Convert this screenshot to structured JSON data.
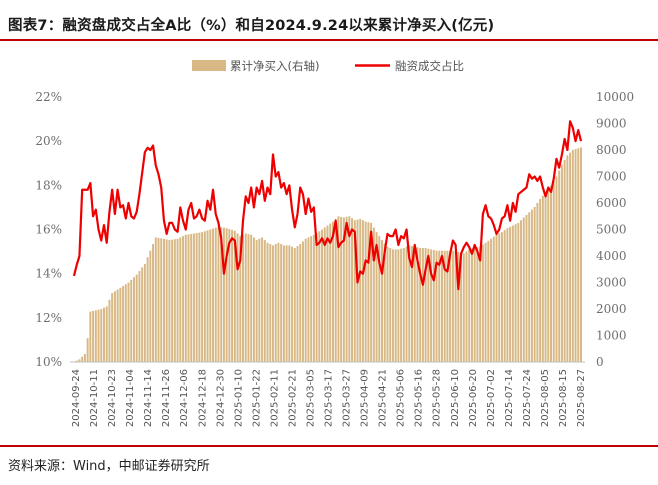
{
  "header": {
    "title": "图表7：融资盘成交占全A比（%）和自2024.9.24以来累计净买入(亿元)"
  },
  "footer": {
    "source": "资料来源：Wind，中邮证券研究所"
  },
  "colors": {
    "rule": "#c00000",
    "bar": "#d8b884",
    "line": "#ee0000"
  },
  "chart_data": {
    "type": "bar+line",
    "x_tick_labels": [
      "2024-09-24",
      "2024-10-11",
      "2024-10-23",
      "2024-11-04",
      "2024-11-14",
      "2024-11-26",
      "2024-12-06",
      "2024-12-18",
      "2024-12-30",
      "2025-01-10",
      "2025-01-22",
      "2025-02-11",
      "2025-02-21",
      "2025-03-05",
      "2025-03-17",
      "2025-03-27",
      "2025-04-09",
      "2025-04-21",
      "2025-05-06",
      "2025-05-16",
      "2025-05-28",
      "2025-06-10",
      "2025-06-20",
      "2025-07-02",
      "2025-07-14",
      "2025-07-24",
      "2025-08-05",
      "2025-08-15",
      "2025-08-27"
    ],
    "left_axis": {
      "ticks": [
        "10%",
        "12%",
        "14%",
        "16%",
        "18%",
        "20%",
        "22%"
      ],
      "ylim": [
        10,
        22
      ]
    },
    "right_axis": {
      "ticks": [
        "0",
        "1000",
        "2000",
        "3000",
        "4000",
        "5000",
        "6000",
        "7000",
        "8000",
        "9000",
        "10000"
      ],
      "ylim": [
        0,
        10000
      ]
    },
    "legend": {
      "placement": "top",
      "bar_label": "累计净买入(右轴)",
      "line_label": "融资成交占比"
    },
    "bar_series": {
      "name": "累计净买入(右轴)",
      "axis": "right",
      "knots": [
        [
          0,
          0
        ],
        [
          2,
          100
        ],
        [
          4,
          300
        ],
        [
          5,
          900
        ],
        [
          6,
          1900
        ],
        [
          8,
          1950
        ],
        [
          10,
          2000
        ],
        [
          12,
          2100
        ],
        [
          14,
          2600
        ],
        [
          17,
          2800
        ],
        [
          20,
          3000
        ],
        [
          23,
          3300
        ],
        [
          26,
          3700
        ],
        [
          28,
          4200
        ],
        [
          30,
          4700
        ],
        [
          33,
          4650
        ],
        [
          35,
          4600
        ],
        [
          38,
          4650
        ],
        [
          41,
          4800
        ],
        [
          44,
          4850
        ],
        [
          47,
          4900
        ],
        [
          50,
          5000
        ],
        [
          53,
          5100
        ],
        [
          56,
          5050
        ],
        [
          59,
          4950
        ],
        [
          61,
          4750
        ],
        [
          63,
          4850
        ],
        [
          65,
          4800
        ],
        [
          67,
          4600
        ],
        [
          69,
          4700
        ],
        [
          71,
          4500
        ],
        [
          73,
          4400
        ],
        [
          75,
          4500
        ],
        [
          77,
          4400
        ],
        [
          79,
          4400
        ],
        [
          81,
          4300
        ],
        [
          83,
          4450
        ],
        [
          85,
          4650
        ],
        [
          88,
          4800
        ],
        [
          91,
          5000
        ],
        [
          93,
          5150
        ],
        [
          95,
          5300
        ],
        [
          97,
          5500
        ],
        [
          99,
          5450
        ],
        [
          101,
          5500
        ],
        [
          103,
          5350
        ],
        [
          105,
          5400
        ],
        [
          107,
          5300
        ],
        [
          109,
          5250
        ],
        [
          111,
          4900
        ],
        [
          113,
          4600
        ],
        [
          115,
          4350
        ],
        [
          117,
          4250
        ],
        [
          119,
          4250
        ],
        [
          121,
          4300
        ],
        [
          123,
          4400
        ],
        [
          125,
          4350
        ],
        [
          127,
          4300
        ],
        [
          129,
          4300
        ],
        [
          131,
          4250
        ],
        [
          133,
          4200
        ],
        [
          135,
          4200
        ],
        [
          137,
          4200
        ],
        [
          139,
          4200
        ],
        [
          141,
          4150
        ],
        [
          143,
          4100
        ],
        [
          145,
          4250
        ],
        [
          147,
          4300
        ],
        [
          149,
          4350
        ],
        [
          151,
          4500
        ],
        [
          153,
          4650
        ],
        [
          155,
          4800
        ],
        [
          157,
          4900
        ],
        [
          159,
          5050
        ],
        [
          161,
          5150
        ],
        [
          163,
          5250
        ],
        [
          165,
          5450
        ],
        [
          167,
          5650
        ],
        [
          169,
          5850
        ],
        [
          171,
          6150
        ],
        [
          173,
          6400
        ],
        [
          175,
          6650
        ],
        [
          177,
          7000
        ],
        [
          179,
          7450
        ],
        [
          181,
          7800
        ],
        [
          183,
          8000
        ],
        [
          186,
          8100
        ],
        [
          187,
          8150
        ]
      ]
    },
    "line_series": {
      "name": "融资成交占比",
      "axis": "left",
      "knots": [
        [
          0,
          13.9
        ],
        [
          1,
          14.4
        ],
        [
          2,
          14.8
        ],
        [
          3,
          17.8
        ],
        [
          5,
          17.8
        ],
        [
          6,
          18.1
        ],
        [
          7,
          16.6
        ],
        [
          8,
          16.9
        ],
        [
          9,
          16.0
        ],
        [
          10,
          15.5
        ],
        [
          11,
          16.2
        ],
        [
          12,
          15.4
        ],
        [
          13,
          16.8
        ],
        [
          14,
          17.8
        ],
        [
          15,
          16.7
        ],
        [
          16,
          17.8
        ],
        [
          17,
          17.0
        ],
        [
          18,
          17.1
        ],
        [
          19,
          16.5
        ],
        [
          20,
          17.2
        ],
        [
          21,
          16.6
        ],
        [
          22,
          16.5
        ],
        [
          23,
          16.8
        ],
        [
          24,
          17.6
        ],
        [
          26,
          19.5
        ],
        [
          27,
          19.7
        ],
        [
          28,
          19.6
        ],
        [
          29,
          19.8
        ],
        [
          30,
          18.9
        ],
        [
          31,
          18.5
        ],
        [
          32,
          17.9
        ],
        [
          33,
          16.4
        ],
        [
          34,
          15.8
        ],
        [
          35,
          16.3
        ],
        [
          36,
          16.3
        ],
        [
          37,
          16.0
        ],
        [
          38,
          15.9
        ],
        [
          39,
          17.0
        ],
        [
          40,
          16.4
        ],
        [
          41,
          16.0
        ],
        [
          42,
          16.9
        ],
        [
          43,
          17.2
        ],
        [
          44,
          16.5
        ],
        [
          45,
          16.6
        ],
        [
          46,
          16.9
        ],
        [
          47,
          16.5
        ],
        [
          48,
          16.4
        ],
        [
          49,
          17.3
        ],
        [
          50,
          16.9
        ],
        [
          51,
          17.8
        ],
        [
          52,
          16.7
        ],
        [
          53,
          16.3
        ],
        [
          54,
          15.6
        ],
        [
          55,
          14.0
        ],
        [
          56,
          14.8
        ],
        [
          57,
          15.4
        ],
        [
          58,
          15.6
        ],
        [
          59,
          15.5
        ],
        [
          60,
          14.2
        ],
        [
          61,
          14.6
        ],
        [
          62,
          16.4
        ],
        [
          63,
          17.5
        ],
        [
          64,
          17.2
        ],
        [
          65,
          17.9
        ],
        [
          66,
          17.0
        ],
        [
          67,
          17.9
        ],
        [
          68,
          17.6
        ],
        [
          69,
          18.2
        ],
        [
          70,
          17.3
        ],
        [
          71,
          17.9
        ],
        [
          72,
          17.6
        ],
        [
          73,
          19.4
        ],
        [
          74,
          18.4
        ],
        [
          75,
          18.6
        ],
        [
          76,
          17.9
        ],
        [
          77,
          18.1
        ],
        [
          78,
          17.6
        ],
        [
          79,
          18.0
        ],
        [
          80,
          16.9
        ],
        [
          81,
          16.1
        ],
        [
          82,
          16.7
        ],
        [
          83,
          17.9
        ],
        [
          84,
          17.6
        ],
        [
          85,
          16.7
        ],
        [
          86,
          17.4
        ],
        [
          87,
          16.8
        ],
        [
          88,
          17.0
        ],
        [
          89,
          15.3
        ],
        [
          90,
          15.4
        ],
        [
          91,
          15.6
        ],
        [
          92,
          15.3
        ],
        [
          93,
          15.6
        ],
        [
          94,
          15.4
        ],
        [
          95,
          15.7
        ],
        [
          96,
          16.4
        ],
        [
          97,
          15.2
        ],
        [
          98,
          15.4
        ],
        [
          99,
          15.5
        ],
        [
          100,
          16.3
        ],
        [
          101,
          15.7
        ],
        [
          102,
          16.0
        ],
        [
          103,
          15.9
        ],
        [
          104,
          13.6
        ],
        [
          105,
          14.1
        ],
        [
          106,
          14.0
        ],
        [
          107,
          14.6
        ],
        [
          108,
          14.5
        ],
        [
          109,
          15.9
        ],
        [
          110,
          14.6
        ],
        [
          111,
          15.3
        ],
        [
          112,
          14.5
        ],
        [
          113,
          14.0
        ],
        [
          114,
          15.0
        ],
        [
          115,
          15.8
        ],
        [
          116,
          15.7
        ],
        [
          117,
          15.7
        ],
        [
          118,
          16.0
        ],
        [
          119,
          15.3
        ],
        [
          120,
          15.7
        ],
        [
          121,
          15.6
        ],
        [
          122,
          16.0
        ],
        [
          123,
          14.7
        ],
        [
          124,
          14.3
        ],
        [
          125,
          15.3
        ],
        [
          126,
          14.6
        ],
        [
          127,
          14.0
        ],
        [
          128,
          13.5
        ],
        [
          129,
          14.2
        ],
        [
          130,
          14.8
        ],
        [
          131,
          14.0
        ],
        [
          132,
          13.7
        ],
        [
          133,
          14.5
        ],
        [
          134,
          14.4
        ],
        [
          135,
          14.8
        ],
        [
          136,
          14.2
        ],
        [
          137,
          14.1
        ],
        [
          138,
          14.9
        ],
        [
          139,
          15.5
        ],
        [
          140,
          15.3
        ],
        [
          141,
          13.3
        ],
        [
          142,
          14.9
        ],
        [
          143,
          15.2
        ],
        [
          144,
          15.4
        ],
        [
          145,
          15.2
        ],
        [
          146,
          14.9
        ],
        [
          147,
          15.3
        ],
        [
          148,
          15.0
        ],
        [
          149,
          14.6
        ],
        [
          150,
          16.7
        ],
        [
          151,
          17.1
        ],
        [
          152,
          16.6
        ],
        [
          153,
          16.5
        ],
        [
          154,
          16.2
        ],
        [
          155,
          15.8
        ],
        [
          156,
          16.0
        ],
        [
          157,
          16.5
        ],
        [
          158,
          16.6
        ],
        [
          159,
          17.1
        ],
        [
          160,
          16.4
        ],
        [
          161,
          17.2
        ],
        [
          162,
          16.8
        ],
        [
          163,
          17.6
        ],
        [
          164,
          17.7
        ],
        [
          165,
          17.8
        ],
        [
          166,
          17.9
        ],
        [
          167,
          18.5
        ],
        [
          168,
          18.3
        ],
        [
          169,
          18.4
        ],
        [
          170,
          18.2
        ],
        [
          171,
          18.4
        ],
        [
          172,
          17.9
        ],
        [
          173,
          17.5
        ],
        [
          174,
          17.9
        ],
        [
          175,
          17.7
        ],
        [
          176,
          18.3
        ],
        [
          177,
          19.2
        ],
        [
          178,
          18.8
        ],
        [
          179,
          19.4
        ],
        [
          180,
          20.1
        ],
        [
          181,
          19.6
        ],
        [
          182,
          20.9
        ],
        [
          183,
          20.6
        ],
        [
          184,
          20.0
        ],
        [
          185,
          20.5
        ],
        [
          186,
          20.0
        ]
      ]
    }
  }
}
